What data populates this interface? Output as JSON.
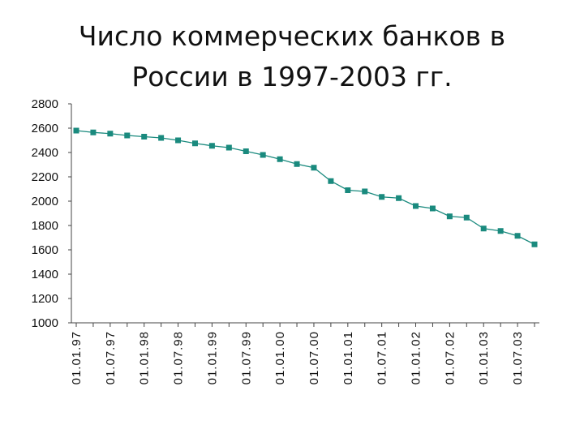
{
  "chart_data": {
    "type": "line",
    "title_line1": "Число коммерческих банков в",
    "title_line2": "России в 1997-2003 гг.",
    "xlabel": "",
    "ylabel": "",
    "ylim": [
      1000,
      2800
    ],
    "yticks": [
      "2800",
      "2600",
      "2400",
      "2200",
      "2000",
      "1800",
      "1600",
      "1400",
      "1200",
      "1000"
    ],
    "ytick_values": [
      2800,
      2600,
      2400,
      2200,
      2000,
      1800,
      1600,
      1400,
      1200,
      1000
    ],
    "xtick_labels": [
      "01.01.97",
      "01.07.97",
      "01.01.98",
      "01.07.98",
      "01.01.99",
      "01.07.99",
      "01.01.00",
      "01.07.00",
      "01.01.01",
      "01.07.01",
      "01.01.02",
      "01.07.02",
      "01.01.03",
      "01.07.03"
    ],
    "grid": false,
    "legend": "none",
    "series": [
      {
        "color": "#1a8a7e",
        "values": [
          2580,
          2565,
          2555,
          2540,
          2530,
          2520,
          2500,
          2475,
          2455,
          2440,
          2410,
          2380,
          2345,
          2305,
          2275,
          2165,
          2090,
          2080,
          2035,
          2025,
          1960,
          1940,
          1875,
          1865,
          1775,
          1755,
          1715,
          1645
        ]
      }
    ]
  }
}
